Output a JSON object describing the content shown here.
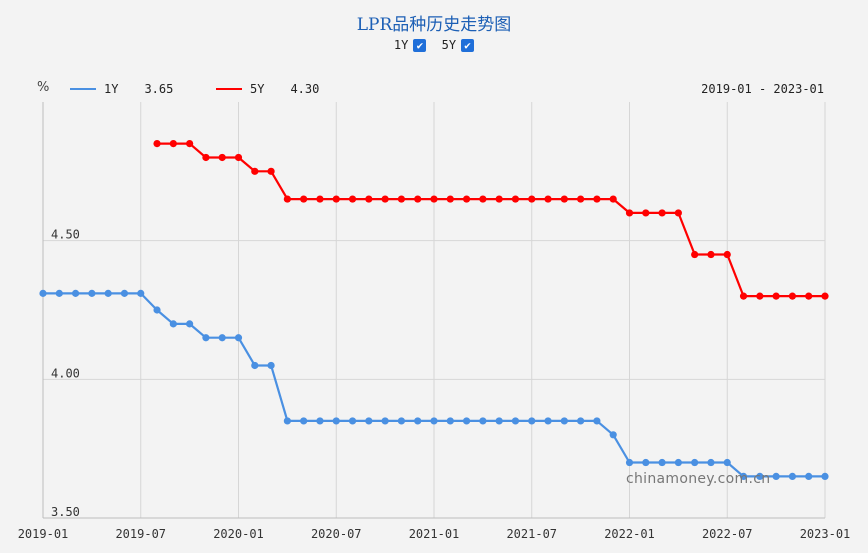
{
  "title": "LPR品种历史走势图",
  "toggles": [
    {
      "label": "1Y",
      "checked": true
    },
    {
      "label": "5Y",
      "checked": true
    }
  ],
  "legend": {
    "unit": "%",
    "items": [
      {
        "name": "1Y",
        "value": "3.65",
        "color": "#4a90e2"
      },
      {
        "name": "5Y",
        "value": "4.30",
        "color": "#ff0000"
      }
    ],
    "range": "2019-01 - 2023-01"
  },
  "watermark": "chinamoney.com.cn",
  "chart_data": {
    "type": "line",
    "title": "LPR品种历史走势图",
    "x_ticks": [
      "2019-01",
      "2019-07",
      "2020-01",
      "2020-07",
      "2021-01",
      "2021-07",
      "2022-01",
      "2022-07",
      "2023-01"
    ],
    "y_ticks": [
      "3.50",
      "4.00",
      "4.50"
    ],
    "ylim": [
      3.5,
      5.0
    ],
    "grid": true,
    "legend_position": "top-left",
    "series": [
      {
        "name": "1Y",
        "color": "#4a90e2",
        "dates": [
          "2019-01",
          "2019-02",
          "2019-03",
          "2019-04",
          "2019-05",
          "2019-06",
          "2019-07",
          "2019-08",
          "2019-09",
          "2019-10",
          "2019-11",
          "2019-12",
          "2020-01",
          "2020-02",
          "2020-03",
          "2020-04",
          "2020-05",
          "2020-06",
          "2020-07",
          "2020-08",
          "2020-09",
          "2020-10",
          "2020-11",
          "2020-12",
          "2021-01",
          "2021-02",
          "2021-03",
          "2021-04",
          "2021-05",
          "2021-06",
          "2021-07",
          "2021-08",
          "2021-09",
          "2021-10",
          "2021-11",
          "2021-12",
          "2022-01",
          "2022-02",
          "2022-03",
          "2022-04",
          "2022-05",
          "2022-06",
          "2022-07",
          "2022-08",
          "2022-09",
          "2022-10",
          "2022-11",
          "2022-12",
          "2023-01"
        ],
        "values": [
          4.31,
          4.31,
          4.31,
          4.31,
          4.31,
          4.31,
          4.31,
          4.25,
          4.2,
          4.2,
          4.15,
          4.15,
          4.15,
          4.05,
          4.05,
          3.85,
          3.85,
          3.85,
          3.85,
          3.85,
          3.85,
          3.85,
          3.85,
          3.85,
          3.85,
          3.85,
          3.85,
          3.85,
          3.85,
          3.85,
          3.85,
          3.85,
          3.85,
          3.85,
          3.85,
          3.8,
          3.7,
          3.7,
          3.7,
          3.7,
          3.7,
          3.7,
          3.7,
          3.65,
          3.65,
          3.65,
          3.65,
          3.65,
          3.65
        ]
      },
      {
        "name": "5Y",
        "color": "#ff0000",
        "dates": [
          "2019-08",
          "2019-09",
          "2019-10",
          "2019-11",
          "2019-12",
          "2020-01",
          "2020-02",
          "2020-03",
          "2020-04",
          "2020-05",
          "2020-06",
          "2020-07",
          "2020-08",
          "2020-09",
          "2020-10",
          "2020-11",
          "2020-12",
          "2021-01",
          "2021-02",
          "2021-03",
          "2021-04",
          "2021-05",
          "2021-06",
          "2021-07",
          "2021-08",
          "2021-09",
          "2021-10",
          "2021-11",
          "2021-12",
          "2022-01",
          "2022-02",
          "2022-03",
          "2022-04",
          "2022-05",
          "2022-06",
          "2022-07",
          "2022-08",
          "2022-09",
          "2022-10",
          "2022-11",
          "2022-12",
          "2023-01"
        ],
        "values": [
          4.85,
          4.85,
          4.85,
          4.8,
          4.8,
          4.8,
          4.75,
          4.75,
          4.65,
          4.65,
          4.65,
          4.65,
          4.65,
          4.65,
          4.65,
          4.65,
          4.65,
          4.65,
          4.65,
          4.65,
          4.65,
          4.65,
          4.65,
          4.65,
          4.65,
          4.65,
          4.65,
          4.65,
          4.65,
          4.6,
          4.6,
          4.6,
          4.6,
          4.45,
          4.45,
          4.45,
          4.3,
          4.3,
          4.3,
          4.3,
          4.3,
          4.3
        ]
      }
    ]
  }
}
